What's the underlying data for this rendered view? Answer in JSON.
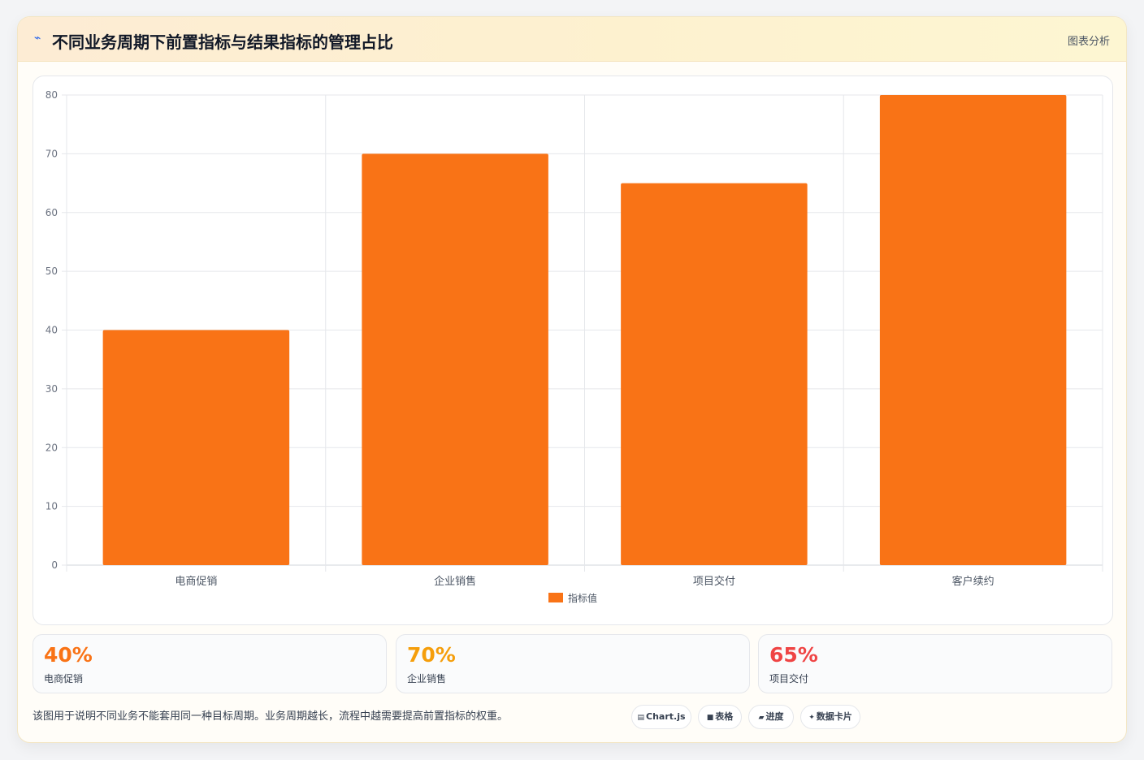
{
  "header": {
    "icon": "chart-line-icon",
    "title": "不同业务周期下前置指标与结果指标的管理占比",
    "tag": "图表分析"
  },
  "chart_data": {
    "type": "bar",
    "categories": [
      "电商促销",
      "企业销售",
      "项目交付",
      "客户续约"
    ],
    "series": [
      {
        "name": "指标值",
        "values": [
          40,
          70,
          65,
          80
        ],
        "color": "#f97316"
      }
    ],
    "ylim": [
      0,
      80
    ],
    "yticks": [
      0,
      10,
      20,
      30,
      40,
      50,
      60,
      70,
      80
    ],
    "grid": true,
    "legend": "bottom"
  },
  "stats": [
    {
      "value": "40%",
      "label": "电商促销",
      "color": "#f97316"
    },
    {
      "value": "70%",
      "label": "企业销售",
      "color": "#f59e0b"
    },
    {
      "value": "65%",
      "label": "项目交付",
      "color": "#ef4444"
    }
  ],
  "footer": {
    "note": "该图用于说明不同业务不能套用同一种目标周期。业务周期越长，流程中越需要提高前置指标的权重。",
    "chips": [
      {
        "icon": "chart-icon",
        "glyph": "▤",
        "label": "Chart.js"
      },
      {
        "icon": "table-icon",
        "glyph": "■",
        "label": "表格"
      },
      {
        "icon": "progress-icon",
        "glyph": "▰",
        "label": "进度"
      },
      {
        "icon": "sparkle-icon",
        "glyph": "✦",
        "label": "数据卡片"
      }
    ]
  }
}
